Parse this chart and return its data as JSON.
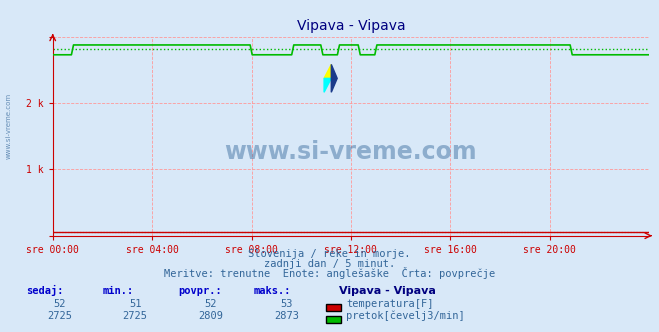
{
  "title": "Vipava - Vipava",
  "bg_color": "#d8e8f8",
  "plot_bg_color": "#d8e8f8",
  "grid_color": "#ff9999",
  "xlabel_ticks": [
    "sre 00:00",
    "sre 04:00",
    "sre 08:00",
    "sre 12:00",
    "sre 16:00",
    "sre 20:00"
  ],
  "ylabel_ticks": [
    "",
    "1 k",
    "2 k",
    ""
  ],
  "ytick_vals": [
    0,
    1000,
    2000,
    3000
  ],
  "ymax": 3000,
  "ymin": 0,
  "watermark": "www.si-vreme.com",
  "subtitle1": "Slovenija / reke in morje.",
  "subtitle2": "zadnji dan / 5 minut.",
  "subtitle3": "Meritve: trenutne  Enote: anglešaške  Črta: povprečje",
  "legend_title": "Vipava - Vipava",
  "legend_items": [
    {
      "label": "temperatura[F]",
      "color": "#cc0000"
    },
    {
      "label": "pretok[čevelj3/min]",
      "color": "#00cc00"
    }
  ],
  "stats_headers": [
    "sedaj:",
    "min.:",
    "povpr.:",
    "maks.:"
  ],
  "stats_temp": [
    52,
    51,
    52,
    53
  ],
  "stats_flow": [
    2725,
    2725,
    2809,
    2873
  ],
  "temp_color": "#cc0000",
  "flow_color": "#00bb00",
  "axis_color": "#cc0000",
  "title_color": "#000080",
  "text_color": "#336699",
  "watermark_color": "#336699",
  "avg_flow_dotted_value": 2809,
  "avg_temp_value": 52,
  "n_points": 288
}
